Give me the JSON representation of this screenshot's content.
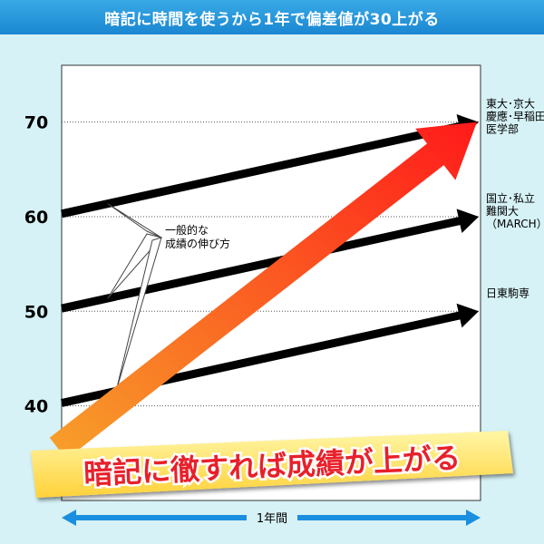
{
  "chart_data": {
    "type": "line",
    "title": "暗記に時間を使うから1年で偏差値が30上がる",
    "xlabel": "1年間",
    "ylabel": "",
    "ylim": [
      30,
      76
    ],
    "yticks": [
      40,
      50,
      60,
      70
    ],
    "grid": true,
    "series": [
      {
        "name": "東大･京大 慶應･早稲田 医学部",
        "label_lines": [
          "東大･京大",
          "慶應･早稲田",
          "医学部"
        ],
        "start": 60.3,
        "end": 70
      },
      {
        "name": "国立･私立 難関大 （MARCH）",
        "label_lines": [
          "国立･私立",
          "難関大",
          "（MARCH）"
        ],
        "start": 50.3,
        "end": 60
      },
      {
        "name": "日東駒専",
        "label_lines": [
          "日東駒専"
        ],
        "start": 40.3,
        "end": 50
      }
    ],
    "callout": {
      "lines": [
        "一般的な",
        "成績の伸び方"
      ]
    },
    "highlight": {
      "start": 35.5,
      "end": 70
    },
    "slogan": "暗記に徹すれば成績が上がる"
  },
  "colors": {
    "background": "#d6f2f6",
    "header": "#1a87d1",
    "axis_arrow": "#1a8fe0",
    "line": "#000000",
    "highlight_start": "#f7a12a",
    "highlight_end": "#ff1a1a",
    "slogan_text": "#e8202a"
  }
}
